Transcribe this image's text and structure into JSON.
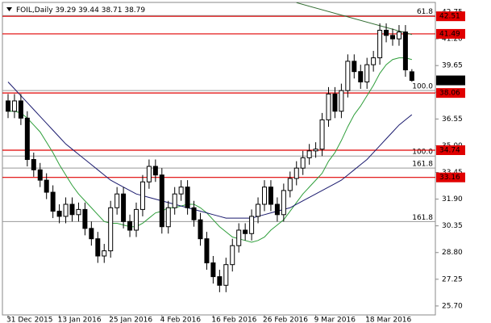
{
  "chart_data": {
    "type": "candlestick",
    "symbol": "FOIL,Daily",
    "categories": [
      "31 Dec 2015",
      null,
      null,
      null,
      null,
      null,
      null,
      null,
      "13 Jan 2016",
      null,
      null,
      null,
      null,
      null,
      null,
      null,
      "25 Jan 2016",
      null,
      null,
      null,
      null,
      null,
      null,
      null,
      "4 Feb 2016",
      null,
      null,
      null,
      null,
      null,
      null,
      null,
      "16 Feb 2016",
      null,
      null,
      null,
      null,
      null,
      null,
      null,
      "26 Feb 2016",
      null,
      null,
      null,
      null,
      null,
      null,
      null,
      "9 Mar 2016",
      null,
      null,
      null,
      null,
      null,
      null,
      null,
      "18 Mar 2016",
      null,
      null,
      null,
      null,
      null,
      null,
      null
    ],
    "open": [
      37.6,
      37.0,
      37.6,
      36.6,
      34.2,
      33.6,
      33.0,
      32.3,
      31.2,
      30.9,
      31.6,
      31.0,
      31.3,
      30.2,
      29.6,
      28.6,
      28.9,
      31.4,
      32.2,
      30.6,
      30.1,
      31.3,
      32.9,
      33.8,
      33.3,
      30.3,
      31.4,
      32.2,
      32.6,
      31.4,
      30.7,
      29.6,
      28.2,
      27.4,
      26.9,
      28.1,
      29.2,
      30.1,
      29.9,
      30.9,
      31.6,
      32.6,
      31.6,
      31.0,
      32.4,
      33.1,
      33.7,
      34.3,
      34.7,
      34.8,
      36.5,
      38.0,
      37.0,
      38.2,
      39.9,
      39.3,
      38.7,
      39.7,
      40.1,
      41.7,
      41.4,
      41.2,
      41.6,
      39.29
    ],
    "high": [
      38.0,
      38.0,
      38.0,
      37.0,
      34.6,
      34.0,
      33.4,
      32.7,
      31.6,
      32.0,
      32.0,
      31.7,
      31.7,
      30.6,
      30.0,
      29.3,
      31.8,
      32.6,
      32.6,
      31.0,
      31.7,
      33.3,
      34.2,
      34.2,
      33.7,
      31.8,
      32.6,
      33.0,
      33.0,
      31.8,
      31.1,
      30.0,
      28.6,
      27.8,
      28.5,
      29.6,
      30.5,
      30.5,
      31.3,
      32.0,
      33.0,
      33.0,
      32.0,
      32.8,
      33.5,
      34.1,
      34.7,
      35.1,
      35.2,
      36.9,
      38.4,
      38.4,
      38.6,
      40.3,
      40.3,
      39.7,
      40.1,
      40.5,
      42.1,
      42.1,
      41.8,
      42.0,
      42.0,
      39.44
    ],
    "low": [
      36.6,
      36.6,
      36.2,
      33.8,
      33.2,
      32.6,
      31.9,
      30.8,
      30.5,
      30.5,
      30.6,
      30.6,
      29.8,
      29.2,
      28.2,
      28.2,
      28.5,
      31.0,
      30.2,
      29.7,
      29.7,
      30.9,
      32.5,
      32.9,
      29.9,
      29.9,
      31.0,
      31.8,
      31.0,
      30.3,
      29.2,
      27.8,
      27.0,
      26.5,
      26.5,
      27.7,
      28.8,
      29.5,
      29.5,
      30.5,
      31.2,
      31.2,
      30.6,
      30.6,
      32.0,
      32.7,
      33.3,
      33.9,
      34.3,
      34.4,
      36.1,
      36.6,
      36.6,
      37.8,
      38.9,
      38.3,
      38.3,
      39.3,
      39.7,
      41.0,
      40.8,
      40.8,
      39.0,
      38.71
    ],
    "close": [
      37.0,
      37.6,
      36.6,
      34.2,
      33.6,
      33.0,
      32.3,
      31.2,
      30.9,
      31.6,
      31.0,
      31.3,
      30.2,
      29.6,
      28.6,
      28.9,
      31.4,
      32.2,
      30.6,
      30.1,
      31.3,
      32.9,
      33.8,
      33.3,
      30.3,
      31.4,
      32.2,
      32.6,
      31.4,
      30.7,
      29.6,
      28.2,
      27.4,
      26.9,
      28.1,
      29.2,
      30.1,
      29.9,
      30.9,
      31.6,
      32.6,
      31.6,
      31.0,
      32.4,
      33.1,
      33.7,
      34.3,
      34.7,
      34.8,
      36.5,
      38.0,
      37.0,
      38.2,
      39.9,
      39.3,
      38.7,
      39.7,
      40.1,
      41.7,
      41.4,
      41.2,
      41.6,
      39.4,
      38.79
    ],
    "up_color": "#ffffff",
    "down_color": "#000000",
    "moving_averages": [
      {
        "color": "#2e9e3a",
        "values": [
          37.0,
          37.0,
          36.9,
          36.6,
          36.2,
          35.8,
          35.2,
          34.6,
          33.9,
          33.3,
          32.7,
          32.2,
          31.8,
          31.4,
          31.0,
          30.6,
          30.5,
          30.5,
          30.4,
          30.3,
          30.3,
          30.5,
          30.8,
          31.1,
          31.2,
          31.4,
          31.4,
          31.5,
          31.6,
          31.6,
          31.4,
          31.1,
          30.7,
          30.3,
          30.0,
          29.7,
          29.6,
          29.5,
          29.4,
          29.5,
          29.7,
          30.1,
          30.4,
          30.7,
          31.2,
          31.7,
          32.2,
          32.6,
          33.0,
          33.4,
          34.1,
          34.6,
          35.3,
          36.1,
          36.8,
          37.3,
          37.9,
          38.5,
          39.2,
          39.7,
          40.0,
          40.1,
          40.1,
          40.0
        ]
      },
      {
        "color": "#1a1a6e",
        "values": [
          38.7,
          38.3,
          37.9,
          37.5,
          37.1,
          36.7,
          36.3,
          35.9,
          35.5,
          35.1,
          34.8,
          34.5,
          34.2,
          33.9,
          33.6,
          33.3,
          33.0,
          32.8,
          32.6,
          32.4,
          32.2,
          32.1,
          32.0,
          31.9,
          31.8,
          31.7,
          31.6,
          31.5,
          31.4,
          31.3,
          31.2,
          31.1,
          31.0,
          30.9,
          30.8,
          30.8,
          30.8,
          30.8,
          30.8,
          30.9,
          31.0,
          31.1,
          31.2,
          31.3,
          31.4,
          31.6,
          31.8,
          32.0,
          32.2,
          32.4,
          32.6,
          32.8,
          33.0,
          33.3,
          33.6,
          33.9,
          34.2,
          34.6,
          35.0,
          35.4,
          35.8,
          36.2,
          36.5,
          36.8
        ]
      }
    ],
    "trendline": {
      "color": "#2f6b2f",
      "x": [
        45,
        63
      ],
      "values": [
        43.3,
        41.45
      ]
    },
    "levels": [
      {
        "value": 42.51,
        "color": "#e00000"
      },
      {
        "value": 41.49,
        "color": "#e00000"
      },
      {
        "value": 38.06,
        "color": "#e00000"
      },
      {
        "value": 34.74,
        "color": "#e00000"
      },
      {
        "value": 33.16,
        "color": "#e00000"
      }
    ],
    "fib_levels": [
      {
        "label": "61.8",
        "value": 42.55
      },
      {
        "label": "100.0",
        "value": 38.2
      },
      {
        "label": "100.0",
        "value": 34.4
      },
      {
        "label": "161.8",
        "value": 33.7
      },
      {
        "label": "161.8",
        "value": 30.6
      }
    ],
    "ylim": [
      25.18,
      43.08
    ],
    "yticks": [
      42.75,
      {
        "value": 41.2,
        "label": "41.20"
      },
      39.65,
      {
        "value": 38.1,
        "label": "38.10"
      },
      36.55,
      {
        "value": 35,
        "label": "35.00"
      },
      33.45,
      {
        "value": 31.9,
        "label": "31.90"
      },
      30.35,
      {
        "value": 28.8,
        "label": "28.80"
      },
      27.25,
      {
        "value": 25.7,
        "label": "25.70"
      }
    ]
  }
}
